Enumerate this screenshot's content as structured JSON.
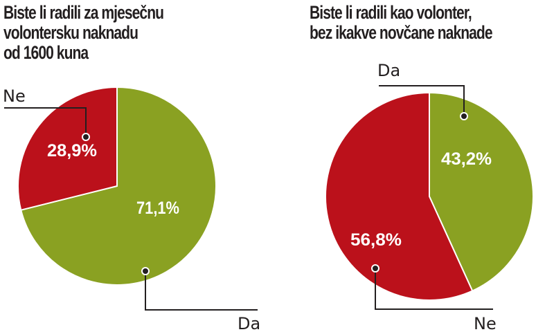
{
  "colors": {
    "green": "#8aa122",
    "red": "#bb111b",
    "leader": "#231f20",
    "text": "#231f20"
  },
  "chart_data": [
    {
      "type": "pie",
      "title": "Biste li radili za mjesečnu volontersku naknadu od 1600 kuna",
      "title_lines": [
        "Biste li radili za mjesečnu",
        "volontersku naknadu",
        "od 1600 kuna"
      ],
      "categories": [
        "Da",
        "Ne"
      ],
      "values": [
        71.1,
        28.9
      ],
      "value_labels": [
        "71,1%",
        "28,9%"
      ],
      "colors": [
        "#8aa122",
        "#bb111b"
      ],
      "start": "12 o'clock, Da clockwise"
    },
    {
      "type": "pie",
      "title": "Biste li radili kao volonter, bez ikakve novčane naknade",
      "title_lines": [
        "Biste li radili kao volonter,",
        "bez ikakve novčane naknade"
      ],
      "categories": [
        "Da",
        "Ne"
      ],
      "values": [
        43.2,
        56.8
      ],
      "value_labels": [
        "43,2%",
        "56,8%"
      ],
      "colors": [
        "#8aa122",
        "#bb111b"
      ],
      "start": "12 o'clock, Da clockwise"
    }
  ]
}
